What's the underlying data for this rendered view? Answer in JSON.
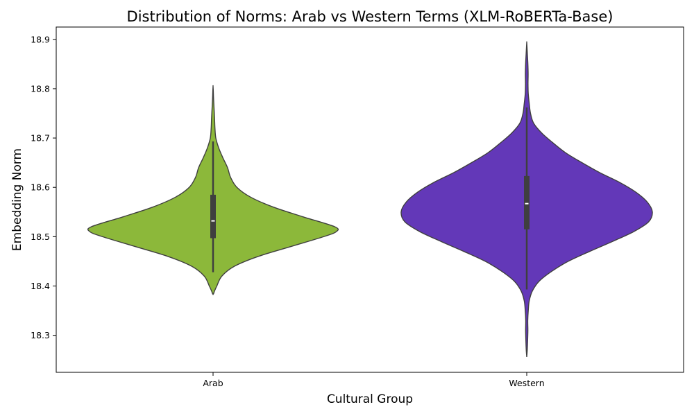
{
  "chart_data": {
    "type": "violin",
    "title": "Distribution of Norms: Arab vs Western Terms (XLM-RoBERTa-Base)",
    "xlabel": "Cultural Group",
    "ylabel": "Embedding Norm",
    "categories": [
      "Arab",
      "Western"
    ],
    "ylim": [
      18.225,
      18.925
    ],
    "yticks": [
      "18.3",
      "18.4",
      "18.5",
      "18.6",
      "18.7",
      "18.8",
      "18.9"
    ],
    "grid": false,
    "series": [
      {
        "category": "Arab",
        "color": "#8cb83a",
        "kde_range": [
          18.383,
          18.805
        ],
        "profile": [
          [
            18.383,
            0.0
          ],
          [
            18.385,
            0.005
          ],
          [
            18.39,
            0.012
          ],
          [
            18.4,
            0.03
          ],
          [
            18.42,
            0.07
          ],
          [
            18.44,
            0.17
          ],
          [
            18.46,
            0.36
          ],
          [
            18.48,
            0.62
          ],
          [
            18.5,
            0.88
          ],
          [
            18.51,
            0.98
          ],
          [
            18.52,
            0.97
          ],
          [
            18.54,
            0.72
          ],
          [
            18.56,
            0.48
          ],
          [
            18.58,
            0.3
          ],
          [
            18.6,
            0.19
          ],
          [
            18.62,
            0.14
          ],
          [
            18.64,
            0.115
          ],
          [
            18.66,
            0.078
          ],
          [
            18.68,
            0.045
          ],
          [
            18.7,
            0.022
          ],
          [
            18.72,
            0.015
          ],
          [
            18.74,
            0.012
          ],
          [
            18.76,
            0.008
          ],
          [
            18.78,
            0.004
          ],
          [
            18.795,
            0.002
          ],
          [
            18.805,
            0.0
          ]
        ],
        "max_halfwidth_ratio": 1.0,
        "q1": 18.497,
        "median": 18.532,
        "q3": 18.585,
        "whisker_low": 18.428,
        "whisker_high": 18.693
      },
      {
        "category": "Western",
        "color": "#6338b8",
        "kde_range": [
          18.256,
          18.894
        ],
        "profile": [
          [
            18.256,
            0.0
          ],
          [
            18.27,
            0.004
          ],
          [
            18.29,
            0.007
          ],
          [
            18.31,
            0.009
          ],
          [
            18.33,
            0.008
          ],
          [
            18.35,
            0.012
          ],
          [
            18.37,
            0.02
          ],
          [
            18.39,
            0.045
          ],
          [
            18.41,
            0.1
          ],
          [
            18.43,
            0.2
          ],
          [
            18.45,
            0.33
          ],
          [
            18.47,
            0.5
          ],
          [
            18.49,
            0.68
          ],
          [
            18.51,
            0.85
          ],
          [
            18.53,
            0.97
          ],
          [
            18.55,
            1.0
          ],
          [
            18.57,
            0.96
          ],
          [
            18.59,
            0.87
          ],
          [
            18.61,
            0.74
          ],
          [
            18.63,
            0.58
          ],
          [
            18.65,
            0.44
          ],
          [
            18.67,
            0.31
          ],
          [
            18.69,
            0.21
          ],
          [
            18.71,
            0.12
          ],
          [
            18.73,
            0.055
          ],
          [
            18.75,
            0.03
          ],
          [
            18.77,
            0.02
          ],
          [
            18.79,
            0.012
          ],
          [
            18.81,
            0.01
          ],
          [
            18.83,
            0.011
          ],
          [
            18.85,
            0.009
          ],
          [
            18.87,
            0.005
          ],
          [
            18.885,
            0.002
          ],
          [
            18.894,
            0.0
          ]
        ],
        "max_halfwidth_ratio": 1.0,
        "q1": 18.515,
        "median": 18.567,
        "q3": 18.623,
        "whisker_low": 18.393,
        "whisker_high": 18.762
      }
    ]
  }
}
